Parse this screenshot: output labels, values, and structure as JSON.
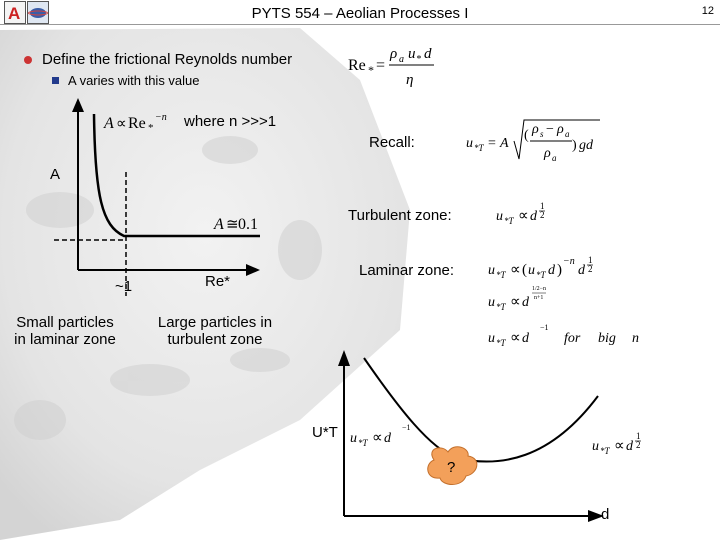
{
  "header": {
    "title": "PYTS 554 – Aeolian Processes I",
    "page_number": "12"
  },
  "bullets": {
    "main": "Define the frictional Reynolds number",
    "sub": "A varies with this value"
  },
  "equations": {
    "reynolds": "Re* = ρa u* d / η",
    "a_prop": "A ∝ Re*⁻ⁿ",
    "a_const": "A ≅ 0.1",
    "recall_eq": "u*T = A √((ρs − ρa)/ρa · g d)",
    "turb_eq": "u*T ∝ d^½",
    "lam_eq1": "u*T ∝ (u*T d)⁻ⁿ d^½",
    "lam_eq2": "u*T ∝ d^(1/2 − n)/(n+1)",
    "lam_eq3": "u*T ∝ d⁻¹   for big n",
    "small_eq": "u*T ∝ d⁻¹",
    "large_eq": "u*T ∝ d^½"
  },
  "labels": {
    "where_n": "where n >>>1",
    "recall": "Recall:",
    "a_axis": "A",
    "turbulent_zone": "Turbulent zone:",
    "laminar_zone": "Laminar zone:",
    "approx_one": "~1",
    "re_axis": "Re*",
    "small_particles": "Small particles\nin laminar zone",
    "large_particles": "Large particles in\nturbulent zone",
    "ut_axis": "U*T",
    "d_axis": "d",
    "question": "?"
  },
  "colors": {
    "blob_fill": "#f3a05a",
    "blob_stroke": "#c4702c",
    "bullet_red": "#cc3333",
    "bullet_blue": "#223a8c"
  }
}
